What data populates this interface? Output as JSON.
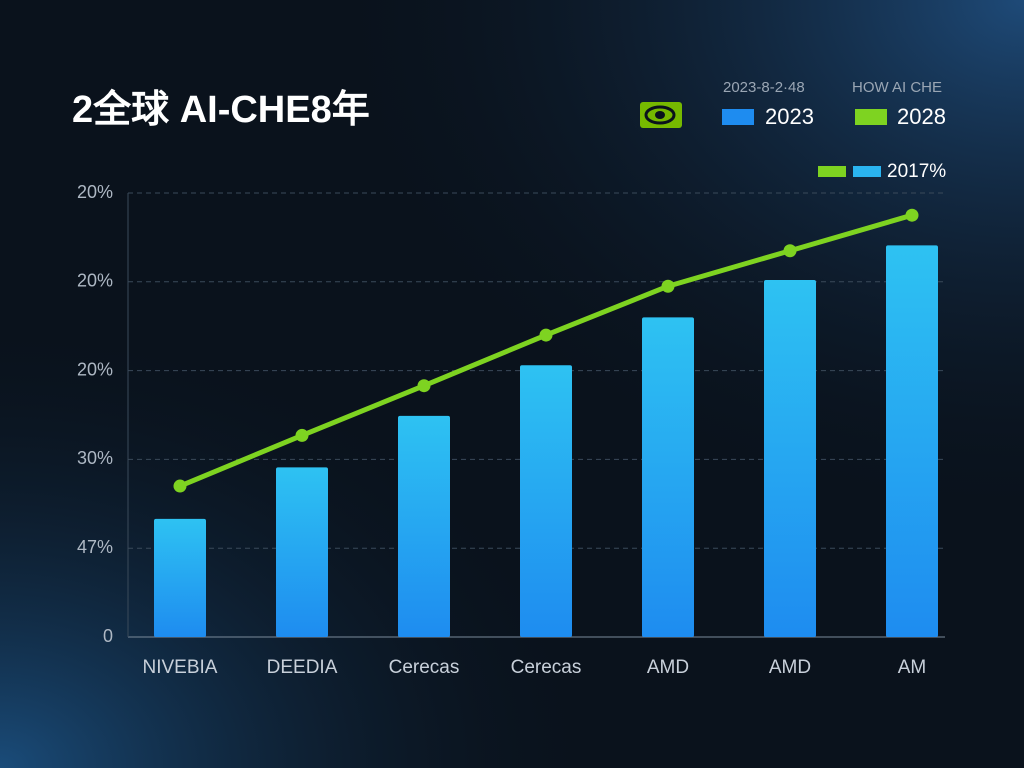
{
  "chart_data": {
    "type": "bar_line",
    "title": "2全球 AI-CHE8年",
    "subtitle": "2023-8-2·48",
    "annotation": "HOW AI CHE",
    "extra_legend_label": "2017%",
    "categories": [
      "NIVEBIA",
      "DEEDIA",
      "Cerecas",
      "Cerecas",
      "AMD",
      "AMD",
      "AM"
    ],
    "series": [
      {
        "name": "2023",
        "color": "#1e8cf0",
        "values": [
          13.3,
          19.1,
          24.9,
          30.6,
          36.0,
          40.2,
          44.1
        ]
      },
      {
        "name": "2028",
        "color": "#7ed321",
        "values": [
          17.0,
          22.7,
          28.3,
          34.0,
          39.5,
          43.5,
          47.5
        ]
      }
    ],
    "ylim": [
      0,
      50
    ],
    "yticks": [
      0,
      {
        "value": 10,
        "label": "47%"
      },
      {
        "value": 20,
        "label": "30%"
      },
      {
        "value": 30,
        "label": "20%"
      },
      {
        "value": 40,
        "label": "20%"
      },
      {
        "value": 50,
        "label": "20%"
      }
    ],
    "grid": true
  }
}
